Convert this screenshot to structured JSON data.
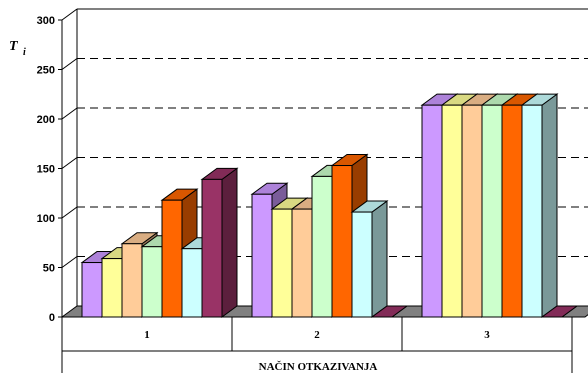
{
  "chart_data": {
    "type": "bar",
    "style": "3d-clustered",
    "categories": [
      "1",
      "2",
      "3"
    ],
    "series": [
      {
        "color": "#cc99ff",
        "values": [
          55,
          124,
          214
        ]
      },
      {
        "color": "#ffff99",
        "values": [
          59,
          109,
          214
        ]
      },
      {
        "color": "#ffcc99",
        "values": [
          74,
          109,
          214
        ]
      },
      {
        "color": "#ccffcc",
        "values": [
          71,
          142,
          214
        ]
      },
      {
        "color": "#ff6600",
        "values": [
          118,
          153,
          214
        ]
      },
      {
        "color": "#ccffff",
        "values": [
          69,
          106,
          214
        ]
      },
      {
        "color": "#993366",
        "values": [
          139,
          0,
          0
        ]
      }
    ],
    "ylabel": "T",
    "ylabel_sub": "i",
    "xlabel": "NAČIN OTKAZIVANJA",
    "ylim": [
      0,
      300
    ],
    "yticks": [
      0,
      50,
      100,
      150,
      200,
      250,
      300
    ],
    "grid": "dashed-horizontal",
    "legend": "none"
  }
}
